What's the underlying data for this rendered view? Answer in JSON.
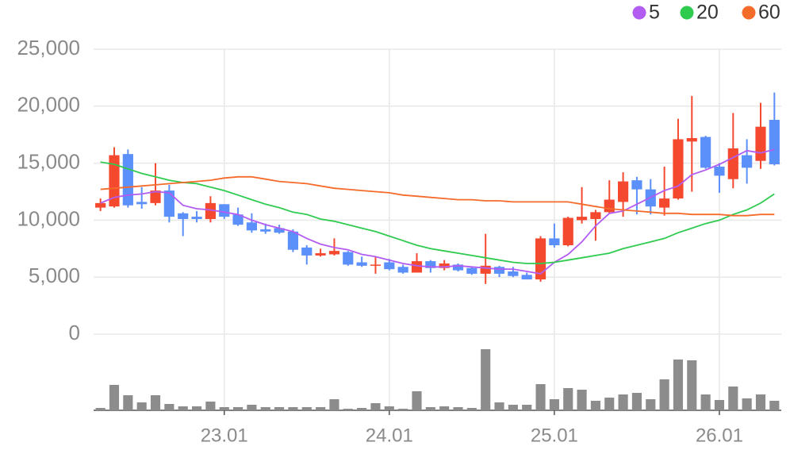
{
  "chart_data": {
    "type": "candlestick",
    "categories": [
      null,
      null,
      null,
      null,
      null,
      null,
      null,
      null,
      null,
      "23.01",
      null,
      null,
      null,
      null,
      null,
      null,
      null,
      null,
      null,
      null,
      null,
      "24.01",
      null,
      null,
      null,
      null,
      null,
      null,
      null,
      null,
      null,
      null,
      null,
      "25.01",
      null,
      null,
      null,
      null,
      null,
      null,
      null,
      null,
      null,
      null,
      null,
      "26.01",
      null,
      null,
      null,
      null
    ],
    "open": [
      11100,
      11200,
      15800,
      11600,
      11500,
      12600,
      10600,
      10300,
      10100,
      11400,
      10500,
      9800,
      9200,
      9300,
      9000,
      7600,
      6900,
      7000,
      7200,
      6300,
      6000,
      6300,
      5900,
      5400,
      6400,
      5800,
      6100,
      5800,
      5300,
      5900,
      5500,
      5200,
      4800,
      8400,
      7800,
      10000,
      10100,
      10700,
      11600,
      13500,
      12700,
      11100,
      11900,
      16900,
      17300,
      14700,
      13600,
      15700,
      15200,
      18800
    ],
    "high": [
      11900,
      16400,
      16200,
      12900,
      15000,
      13100,
      10700,
      10800,
      12100,
      11400,
      11100,
      10600,
      9700,
      9600,
      9200,
      7800,
      7500,
      8400,
      7300,
      6800,
      6800,
      6600,
      6100,
      7100,
      6500,
      6500,
      6200,
      5900,
      8800,
      6000,
      5900,
      5400,
      8600,
      9700,
      10300,
      12900,
      10900,
      13500,
      14200,
      13800,
      13600,
      14700,
      18900,
      20900,
      17400,
      15000,
      19400,
      17100,
      20300,
      21200
    ],
    "low": [
      10800,
      11100,
      11100,
      11000,
      11300,
      9800,
      8600,
      9800,
      9800,
      10100,
      9500,
      8900,
      8800,
      8800,
      7200,
      6100,
      6800,
      6900,
      6000,
      5900,
      5300,
      5600,
      5300,
      5400,
      5400,
      5600,
      5500,
      5200,
      4400,
      5000,
      5000,
      4800,
      4600,
      7600,
      7700,
      9700,
      8200,
      10600,
      10300,
      10500,
      10500,
      10400,
      11800,
      12500,
      14500,
      12400,
      12800,
      13200,
      14500,
      14800
    ],
    "close": [
      11500,
      15700,
      11300,
      11400,
      12600,
      10300,
      10100,
      10100,
      11500,
      10300,
      9600,
      9100,
      9000,
      8900,
      7400,
      6900,
      7100,
      7300,
      6100,
      6000,
      6100,
      5700,
      5400,
      6400,
      5800,
      6200,
      5600,
      5300,
      6000,
      5300,
      5100,
      4800,
      8400,
      7800,
      10200,
      10300,
      10700,
      11800,
      13400,
      12700,
      11200,
      11900,
      17100,
      17200,
      14600,
      13900,
      16300,
      14600,
      18200,
      14900
    ],
    "volume": [
      3,
      32,
      19,
      10,
      19,
      8,
      5,
      5,
      11,
      4,
      4,
      7,
      4,
      4,
      4,
      4,
      4,
      14,
      2,
      3,
      9,
      5,
      2,
      24,
      4,
      5,
      4,
      3,
      77,
      10,
      7,
      7,
      33,
      14,
      28,
      26,
      12,
      16,
      20,
      22,
      14,
      39,
      64,
      63,
      20,
      13,
      30,
      15,
      20,
      12
    ],
    "up_color": "#f5492f",
    "down_color": "#5b8ff9",
    "volume_color": "#8c8c8c",
    "series": [
      {
        "name": "5",
        "color": "#b25cf2",
        "values": [
          11500,
          12000,
          12200,
          12300,
          12500,
          12400,
          11300,
          11000,
          10900,
          10700,
          10500,
          10000,
          9600,
          9300,
          9000,
          8400,
          7900,
          7600,
          7400,
          7000,
          6800,
          6500,
          6200,
          6000,
          5900,
          5900,
          6000,
          5900,
          5800,
          5700,
          5700,
          5500,
          5300,
          6300,
          7000,
          8100,
          9500,
          10600,
          10800,
          11400,
          12000,
          12600,
          13000,
          14000,
          14400,
          14900,
          15500,
          16100,
          15900,
          16200
        ]
      },
      {
        "name": "20",
        "color": "#2ecb4f",
        "values": [
          15100,
          14900,
          14500,
          14100,
          13800,
          13500,
          13300,
          13200,
          12900,
          12600,
          12200,
          11800,
          11400,
          11100,
          10700,
          10500,
          10100,
          9900,
          9600,
          9300,
          9000,
          8600,
          8200,
          7800,
          7500,
          7300,
          7100,
          6900,
          6700,
          6500,
          6300,
          6200,
          6200,
          6300,
          6500,
          6700,
          6900,
          7100,
          7500,
          7800,
          8100,
          8400,
          8900,
          9300,
          9700,
          10000,
          10500,
          10900,
          11500,
          12300
        ]
      },
      {
        "name": "60",
        "color": "#f56b2b",
        "values": [
          12700,
          12800,
          12900,
          13000,
          13100,
          13200,
          13300,
          13400,
          13500,
          13700,
          13800,
          13800,
          13600,
          13400,
          13300,
          13200,
          13000,
          12800,
          12700,
          12600,
          12500,
          12400,
          12200,
          12100,
          12000,
          11900,
          11800,
          11800,
          11700,
          11700,
          11600,
          11600,
          11600,
          11600,
          11600,
          11400,
          11200,
          11000,
          10900,
          10800,
          10700,
          10600,
          10600,
          10500,
          10500,
          10500,
          10400,
          10400,
          10500,
          10500
        ]
      }
    ],
    "ylim": [
      0,
      25000
    ],
    "yticks": [
      0,
      {
        "value": 5000,
        "label": "5,000"
      },
      {
        "value": 10000,
        "label": "10,000"
      },
      {
        "value": 15000,
        "label": "15,000"
      },
      {
        "value": 20000,
        "label": "20,000"
      },
      {
        "value": 25000,
        "label": "25,000"
      }
    ],
    "grid": true,
    "legend": "top-right"
  }
}
